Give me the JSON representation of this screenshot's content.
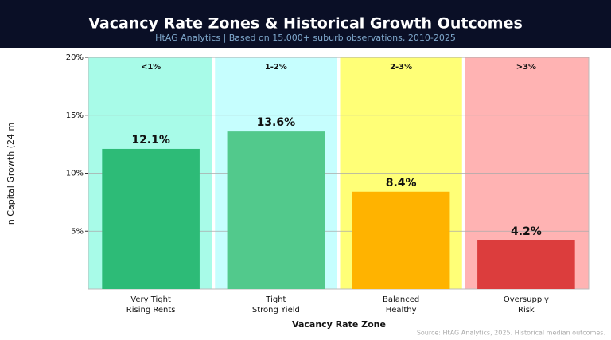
{
  "chart_data": {
    "type": "bar",
    "title": "Vacancy Rate Zones & Historical Growth Outcomes",
    "subtitle": "HtAG Analytics | Based on 15,000+ suburb observations, 2010-2025",
    "y_label": "n Capital Growth (24 m",
    "x_label": "Vacancy Rate Zone",
    "source": "Source: HtAG Analytics, 2025. Historical median outcomes.",
    "zones": [
      "<1%",
      "1-2%",
      "2-3%",
      ">3%"
    ],
    "zone_colors": [
      "#a8fbe8",
      "#c6fefe",
      "#ffff77",
      "#ffb3b3"
    ],
    "categories": [
      [
        "Very Tight",
        "Rising Rents"
      ],
      [
        "Tight",
        "Strong Yield"
      ],
      [
        "Balanced",
        "Healthy"
      ],
      [
        "Oversupply",
        "Risk"
      ]
    ],
    "values": [
      12.1,
      13.6,
      8.4,
      4.2
    ],
    "value_labels": [
      "12.1%",
      "13.6%",
      "8.4%",
      "4.2%"
    ],
    "colors": [
      "#2dbb77",
      "#52c98c",
      "#ffb300",
      "#dc3d3d"
    ],
    "ylim": [
      0,
      20
    ],
    "yticks": [
      {
        "value": 5,
        "label": "5%"
      },
      {
        "value": 10,
        "label": "10%"
      },
      {
        "value": 15,
        "label": "15%"
      },
      {
        "value": 20,
        "label": "20%"
      }
    ],
    "grid": true
  }
}
